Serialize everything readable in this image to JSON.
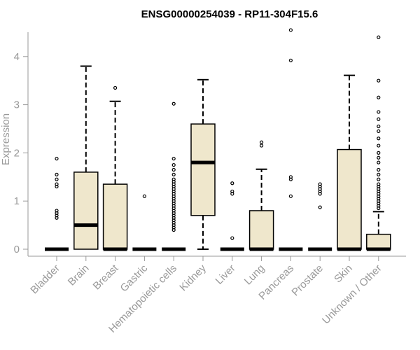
{
  "chart_data": {
    "type": "boxplot",
    "title": "ENSG00000254039 - RP11-304F15.6",
    "ylabel": "Expression",
    "xlabel": "",
    "ylim": [
      0,
      4.5
    ],
    "yticks": [
      0,
      1,
      2,
      3,
      4
    ],
    "box_fill": "#efe7cc",
    "axis_color": "#999999",
    "categories": [
      "Bladder",
      "Brain",
      "Breast",
      "Gastric",
      "Hematopoietic cells",
      "Kidney",
      "Liver",
      "Lung",
      "Pancreas",
      "Prostate",
      "Skin",
      "Unknown / Other"
    ],
    "boxes": [
      {
        "q1": 0,
        "median": 0,
        "q3": 0,
        "whisker_low": 0,
        "whisker_high": 0,
        "outliers": [
          0.65,
          0.7,
          0.75,
          0.8,
          1.3,
          1.35,
          1.45,
          1.55,
          1.88
        ]
      },
      {
        "q1": 0,
        "median": 0.5,
        "q3": 1.6,
        "whisker_low": 0,
        "whisker_high": 3.8,
        "outliers": []
      },
      {
        "q1": 0,
        "median": 0,
        "q3": 1.35,
        "whisker_low": 0,
        "whisker_high": 3.07,
        "outliers": [
          3.35
        ]
      },
      {
        "q1": 0,
        "median": 0,
        "q3": 0,
        "whisker_low": 0,
        "whisker_high": 0,
        "outliers": [
          1.1
        ]
      },
      {
        "q1": 0,
        "median": 0,
        "q3": 0,
        "whisker_low": 0,
        "whisker_high": 0,
        "outliers": [
          0.4,
          0.45,
          0.5,
          0.55,
          0.6,
          0.65,
          0.7,
          0.75,
          0.8,
          0.85,
          0.9,
          0.95,
          1.0,
          1.05,
          1.1,
          1.15,
          1.2,
          1.25,
          1.3,
          1.35,
          1.4,
          1.45,
          1.55,
          1.65,
          1.75,
          1.88,
          3.02
        ]
      },
      {
        "q1": 0.7,
        "median": 1.8,
        "q3": 2.6,
        "whisker_low": 0,
        "whisker_high": 3.52,
        "outliers": []
      },
      {
        "q1": 0,
        "median": 0,
        "q3": 0,
        "whisker_low": 0,
        "whisker_high": 0,
        "outliers": [
          0.23,
          1.15,
          1.2,
          1.37
        ]
      },
      {
        "q1": 0,
        "median": 0,
        "q3": 0.8,
        "whisker_low": 0,
        "whisker_high": 1.66,
        "outliers": [
          2.15,
          2.22
        ]
      },
      {
        "q1": 0,
        "median": 0,
        "q3": 0,
        "whisker_low": 0,
        "whisker_high": 0,
        "outliers": [
          1.1,
          1.45,
          1.5,
          3.92,
          4.55
        ]
      },
      {
        "q1": 0,
        "median": 0,
        "q3": 0,
        "whisker_low": 0,
        "whisker_high": 0,
        "outliers": [
          0.87,
          1.15,
          1.2,
          1.25,
          1.3,
          1.35
        ]
      },
      {
        "q1": 0,
        "median": 0,
        "q3": 2.07,
        "whisker_low": 0,
        "whisker_high": 3.61,
        "outliers": []
      },
      {
        "q1": 0,
        "median": 0,
        "q3": 0.31,
        "whisker_low": 0,
        "whisker_high": 0.78,
        "outliers": [
          0.85,
          0.9,
          0.95,
          1.0,
          1.05,
          1.1,
          1.15,
          1.2,
          1.25,
          1.3,
          1.35,
          1.45,
          1.55,
          1.65,
          1.8,
          1.9,
          2.0,
          2.15,
          2.3,
          2.45,
          2.55,
          2.7,
          2.85,
          3.15,
          3.5,
          4.4
        ]
      }
    ]
  }
}
